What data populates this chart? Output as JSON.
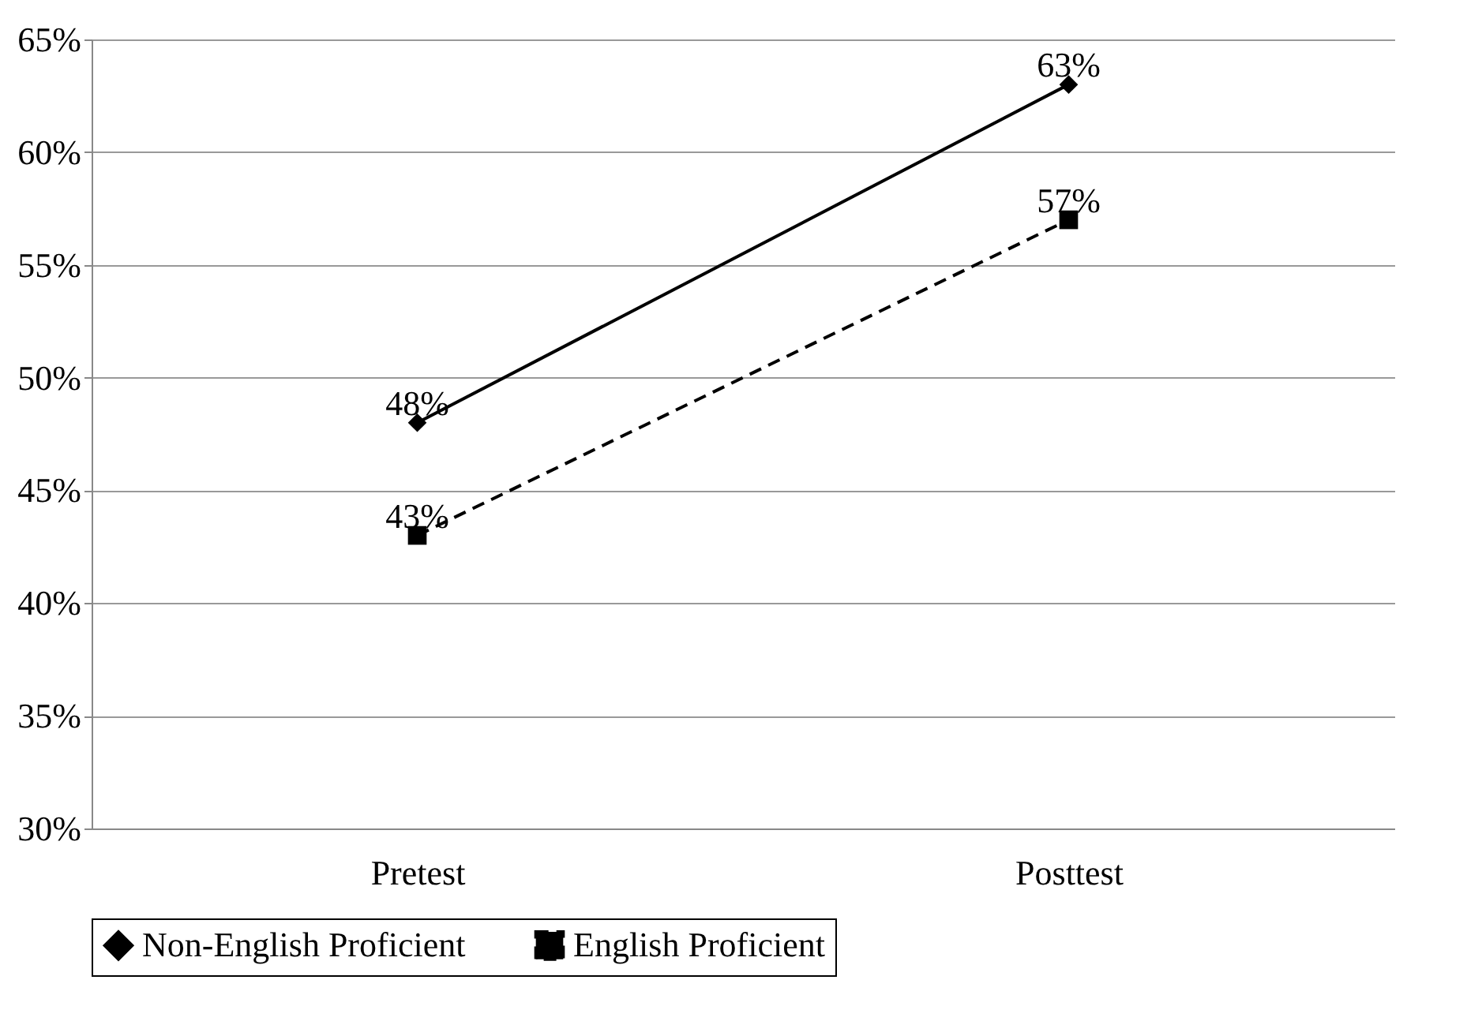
{
  "chart_data": {
    "type": "line",
    "categories": [
      "Pretest",
      "Posttest"
    ],
    "series": [
      {
        "name": "Non-English Proficient",
        "color": "#000000",
        "values": [
          48,
          63
        ],
        "value_labels": [
          "48%",
          "63%"
        ],
        "marker": "diamond",
        "line_style": "solid"
      },
      {
        "name": "English Proficient",
        "color": "#000000",
        "values": [
          43,
          57
        ],
        "value_labels": [
          "43%",
          "57%"
        ],
        "marker": "square",
        "line_style": "dashed"
      }
    ],
    "ylim": [
      30,
      65
    ],
    "yticks": [
      {
        "value": 30,
        "label": "30%"
      },
      {
        "value": 35,
        "label": "35%"
      },
      {
        "value": 40,
        "label": "40%"
      },
      {
        "value": 45,
        "label": "45%"
      },
      {
        "value": 50,
        "label": "50%"
      },
      {
        "value": 55,
        "label": "55%"
      },
      {
        "value": 60,
        "label": "60%"
      },
      {
        "value": 65,
        "label": "65%"
      }
    ],
    "grid": "y",
    "legend": "bottom"
  }
}
